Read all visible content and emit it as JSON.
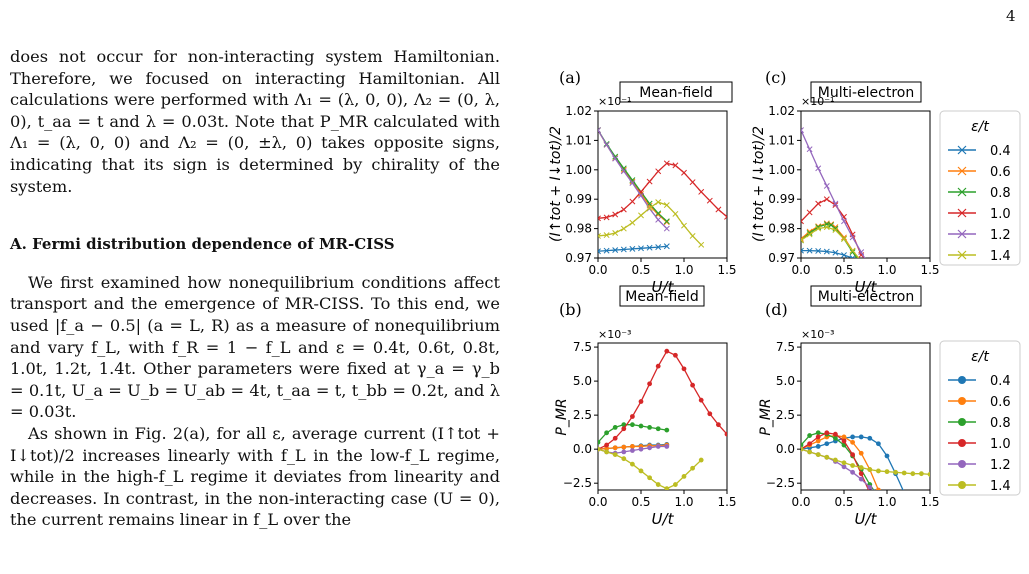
{
  "page": {
    "number": "4"
  },
  "text": {
    "para1": "does not occur for non-interacting system Hamiltonian. Therefore, we focused on interacting Hamiltonian. All calculations were performed with Λ₁ = (λ, 0, 0), Λ₂ = (0, λ, 0), t_aa = t and λ = 0.03t. Note that P_MR calculated with Λ₁ = (λ, 0, 0) and Λ₂ = (0, ±λ, 0) takes opposite signs, indicating that its sign is determined by chirality of the system.",
    "heading": "A.   Fermi distribution dependence of MR-CISS",
    "para2": "We first examined how nonequilibrium conditions affect transport and the emergence of MR-CISS. To this end, we used |f_a − 0.5| (a = L, R) as a measure of nonequilibrium and vary f_L, with f_R = 1 − f_L and ε = 0.4t, 0.6t, 0.8t, 1.0t, 1.2t, 1.4t. Other parameters were fixed at γ_a = γ_b = 0.1t, U_a = U_b = U_ab = 4t, t_aa = t, t_bb = 0.2t, and λ = 0.03t.",
    "para3": "As shown in Fig. 2(a), for all ε, average current (I↑tot + I↓tot)/2 increases linearly with f_L in the low-f_L regime, while in the high-f_L regime it deviates from linearity and decreases. In contrast, in the non-interacting case (U = 0), the current remains linear in f_L over the"
  },
  "figure": {
    "panels": [
      {
        "tag": "(a)",
        "title": "Mean-field"
      },
      {
        "tag": "(c)",
        "title": "Multi-electron"
      },
      {
        "tag": "(b)",
        "title": "Mean-field"
      },
      {
        "tag": "(d)",
        "title": "Multi-electron"
      }
    ],
    "ylabel_top": "(I↑tot + I↓tot)/2",
    "ylabel_bottom": "P_MR",
    "xlabel": "U/t",
    "exp_top": "×10⁻¹",
    "exp_bottom": "×10⁻³",
    "legend_title": "ε/t",
    "legend_items": [
      "0.4",
      "0.6",
      "0.8",
      "1.0",
      "1.2",
      "1.4"
    ],
    "colors": [
      "#1f77b4",
      "#ff7f0e",
      "#2ca02c",
      "#d62728",
      "#9467bd",
      "#bcbd22"
    ]
  },
  "chart_data": [
    {
      "type": "line",
      "panel": "(a)",
      "title": "Mean-field",
      "xlabel": "U/t",
      "ylabel": "(I↑tot + I↓tot)/2",
      "y_multiplier": "×10⁻¹",
      "xlim": [
        0,
        1.5
      ],
      "ylim": [
        0.97,
        1.02
      ],
      "xticks": [
        0.0,
        0.5,
        1.0,
        1.5
      ],
      "yticks": [
        0.97,
        0.98,
        0.99,
        1.0,
        1.01,
        1.02
      ],
      "marker": "x",
      "series": [
        {
          "name": "0.4",
          "x": [
            0,
            0.1,
            0.2,
            0.3,
            0.4,
            0.5,
            0.6,
            0.7,
            0.8
          ],
          "y": [
            0.9723,
            0.9725,
            0.9727,
            0.9729,
            0.9731,
            0.9733,
            0.9735,
            0.9737,
            0.974
          ]
        },
        {
          "name": "0.6",
          "x": [
            0,
            0.1,
            0.2,
            0.3,
            0.4,
            0.5,
            0.6,
            0.7,
            0.8
          ],
          "y": [
            1.0135,
            1.0085,
            1.004,
            1.0,
            0.996,
            0.9918,
            0.9878,
            0.9848,
            0.9822
          ]
        },
        {
          "name": "0.8",
          "x": [
            0,
            0.1,
            0.2,
            0.3,
            0.4,
            0.5,
            0.6,
            0.7,
            0.8
          ],
          "y": [
            1.0135,
            1.0088,
            1.0045,
            1.0005,
            0.9965,
            0.9925,
            0.9885,
            0.9852,
            0.9825
          ]
        },
        {
          "name": "1.0",
          "x": [
            0,
            0.1,
            0.2,
            0.3,
            0.4,
            0.5,
            0.6,
            0.7,
            0.8,
            0.9,
            1.0,
            1.1,
            1.2,
            1.3,
            1.4,
            1.5
          ],
          "y": [
            0.9835,
            0.9838,
            0.9848,
            0.9865,
            0.9892,
            0.9925,
            0.996,
            0.9995,
            1.0022,
            1.0015,
            0.999,
            0.9958,
            0.9925,
            0.9895,
            0.9865,
            0.984
          ]
        },
        {
          "name": "1.2",
          "x": [
            0,
            0.1,
            0.2,
            0.3,
            0.4,
            0.5,
            0.6,
            0.7,
            0.8
          ],
          "y": [
            1.0135,
            1.0085,
            1.0038,
            0.9995,
            0.9955,
            0.9912,
            0.9868,
            0.983,
            0.98
          ]
        },
        {
          "name": "1.4",
          "x": [
            0,
            0.1,
            0.2,
            0.3,
            0.4,
            0.5,
            0.6,
            0.7,
            0.8,
            0.9,
            1.0,
            1.1,
            1.2
          ],
          "y": [
            0.9775,
            0.9778,
            0.9785,
            0.98,
            0.982,
            0.9845,
            0.987,
            0.989,
            0.988,
            0.985,
            0.981,
            0.9775,
            0.9745
          ]
        }
      ]
    },
    {
      "type": "line",
      "panel": "(c)",
      "title": "Multi-electron",
      "xlabel": "U/t",
      "ylabel": "(I↑tot + I↓tot)/2",
      "y_multiplier": "×10⁻¹",
      "xlim": [
        0,
        1.5
      ],
      "ylim": [
        0.97,
        1.02
      ],
      "xticks": [
        0.0,
        0.5,
        1.0,
        1.5
      ],
      "yticks": [
        0.97,
        0.98,
        0.99,
        1.0,
        1.01,
        1.02
      ],
      "marker": "x",
      "series": [
        {
          "name": "0.4",
          "x": [
            0,
            0.1,
            0.2,
            0.3,
            0.4,
            0.5,
            0.6,
            0.7
          ],
          "y": [
            0.9725,
            0.9725,
            0.9724,
            0.9722,
            0.9718,
            0.971,
            0.97,
            0.969
          ]
        },
        {
          "name": "0.6",
          "x": [
            0,
            0.1,
            0.2,
            0.3,
            0.35,
            0.4,
            0.5,
            0.6,
            0.7
          ],
          "y": [
            0.9765,
            0.979,
            0.9808,
            0.9818,
            0.9815,
            0.9805,
            0.977,
            0.9725,
            0.9685
          ]
        },
        {
          "name": "0.8",
          "x": [
            0,
            0.1,
            0.2,
            0.3,
            0.35,
            0.4,
            0.5,
            0.6,
            0.7
          ],
          "y": [
            0.976,
            0.9785,
            0.9805,
            0.9815,
            0.9812,
            0.98,
            0.9765,
            0.972,
            0.968
          ]
        },
        {
          "name": "1.0",
          "x": [
            0,
            0.1,
            0.2,
            0.3,
            0.4,
            0.5,
            0.6,
            0.7
          ],
          "y": [
            0.9825,
            0.9855,
            0.9885,
            0.99,
            0.988,
            0.984,
            0.978,
            0.971
          ]
        },
        {
          "name": "1.2",
          "x": [
            0,
            0.1,
            0.2,
            0.3,
            0.4,
            0.5,
            0.6,
            0.7,
            0.8
          ],
          "y": [
            1.0135,
            1.007,
            1.0005,
            0.9945,
            0.9885,
            0.9825,
            0.977,
            0.972,
            0.967
          ]
        },
        {
          "name": "1.4",
          "x": [
            0,
            0.1,
            0.2,
            0.3,
            0.4,
            0.5,
            0.6,
            0.7
          ],
          "y": [
            0.976,
            0.978,
            0.98,
            0.9805,
            0.9795,
            0.9765,
            0.9725,
            0.969
          ]
        }
      ]
    },
    {
      "type": "line",
      "panel": "(b)",
      "title": "Mean-field",
      "xlabel": "U/t",
      "ylabel": "P_MR",
      "y_multiplier": "×10⁻³",
      "xlim": [
        0,
        1.5
      ],
      "ylim": [
        -3.0,
        7.8
      ],
      "xticks": [
        0.0,
        0.5,
        1.0,
        1.5
      ],
      "yticks": [
        -2.5,
        0.0,
        2.5,
        5.0,
        7.5
      ],
      "marker": "o",
      "series": [
        {
          "name": "0.4",
          "x": [
            0,
            0.1,
            0.2,
            0.3,
            0.4,
            0.5,
            0.6,
            0.7,
            0.8
          ],
          "y": [
            0.0,
            0.05,
            0.1,
            0.15,
            0.2,
            0.25,
            0.3,
            0.3,
            0.35
          ]
        },
        {
          "name": "0.6",
          "x": [
            0,
            0.1,
            0.2,
            0.3,
            0.4,
            0.5,
            0.6,
            0.7,
            0.8
          ],
          "y": [
            0.0,
            0.05,
            0.1,
            0.15,
            0.2,
            0.2,
            0.25,
            0.25,
            0.3
          ]
        },
        {
          "name": "0.8",
          "x": [
            0,
            0.1,
            0.2,
            0.3,
            0.4,
            0.5,
            0.6,
            0.7,
            0.8
          ],
          "y": [
            0.5,
            1.2,
            1.6,
            1.8,
            1.8,
            1.7,
            1.6,
            1.5,
            1.4
          ]
        },
        {
          "name": "1.0",
          "x": [
            0,
            0.1,
            0.2,
            0.3,
            0.4,
            0.5,
            0.6,
            0.7,
            0.8,
            0.9,
            1.0,
            1.1,
            1.2,
            1.3,
            1.4,
            1.5
          ],
          "y": [
            0.0,
            0.3,
            0.8,
            1.5,
            2.4,
            3.5,
            4.8,
            6.1,
            7.2,
            6.9,
            5.9,
            4.7,
            3.6,
            2.6,
            1.8,
            1.1
          ]
        },
        {
          "name": "1.2",
          "x": [
            0,
            0.1,
            0.2,
            0.3,
            0.4,
            0.5,
            0.6,
            0.7,
            0.8
          ],
          "y": [
            0.0,
            -0.2,
            -0.3,
            -0.2,
            -0.1,
            0.0,
            0.1,
            0.2,
            0.2
          ]
        },
        {
          "name": "1.4",
          "x": [
            0,
            0.1,
            0.2,
            0.3,
            0.4,
            0.5,
            0.6,
            0.7,
            0.8,
            0.9,
            1.0,
            1.1,
            1.2
          ],
          "y": [
            0.0,
            -0.2,
            -0.4,
            -0.7,
            -1.1,
            -1.6,
            -2.1,
            -2.6,
            -2.9,
            -2.6,
            -2.0,
            -1.4,
            -0.8
          ]
        }
      ]
    },
    {
      "type": "line",
      "panel": "(d)",
      "title": "Multi-electron",
      "xlabel": "U/t",
      "ylabel": "P_MR",
      "y_multiplier": "×10⁻³",
      "xlim": [
        0,
        1.5
      ],
      "ylim": [
        -3.0,
        7.8
      ],
      "xticks": [
        0.0,
        0.5,
        1.0,
        1.5
      ],
      "yticks": [
        -2.5,
        0.0,
        2.5,
        5.0,
        7.5
      ],
      "marker": "o",
      "series": [
        {
          "name": "0.4",
          "x": [
            0,
            0.1,
            0.2,
            0.3,
            0.4,
            0.5,
            0.6,
            0.7,
            0.8,
            0.9,
            1.0,
            1.1,
            1.2
          ],
          "y": [
            0.0,
            0.1,
            0.2,
            0.4,
            0.6,
            0.8,
            0.9,
            0.9,
            0.8,
            0.4,
            -0.5,
            -1.8,
            -3.2
          ]
        },
        {
          "name": "0.6",
          "x": [
            0,
            0.1,
            0.2,
            0.3,
            0.4,
            0.5,
            0.6,
            0.7,
            0.8,
            0.9
          ],
          "y": [
            0.0,
            0.3,
            0.6,
            0.9,
            1.0,
            0.9,
            0.5,
            -0.3,
            -1.5,
            -3.0
          ]
        },
        {
          "name": "0.8",
          "x": [
            0,
            0.1,
            0.2,
            0.3,
            0.4,
            0.5,
            0.6,
            0.7,
            0.8,
            0.9
          ],
          "y": [
            0.3,
            1.0,
            1.2,
            1.1,
            0.8,
            0.3,
            -0.5,
            -1.5,
            -2.6,
            -3.5
          ]
        },
        {
          "name": "1.0",
          "x": [
            0,
            0.1,
            0.2,
            0.3,
            0.4,
            0.5,
            0.6,
            0.7,
            0.8
          ],
          "y": [
            0.0,
            0.4,
            0.9,
            1.2,
            1.1,
            0.6,
            -0.4,
            -1.8,
            -3.2
          ]
        },
        {
          "name": "1.2",
          "x": [
            0,
            0.1,
            0.2,
            0.3,
            0.4,
            0.5,
            0.6,
            0.7,
            0.8,
            0.9
          ],
          "y": [
            0.0,
            -0.2,
            -0.4,
            -0.6,
            -0.9,
            -1.3,
            -1.7,
            -2.2,
            -2.8,
            -3.4
          ]
        },
        {
          "name": "1.4",
          "x": [
            0,
            0.1,
            0.2,
            0.3,
            0.4,
            0.5,
            0.6,
            0.7,
            0.8,
            0.9,
            1.0,
            1.1,
            1.2,
            1.3,
            1.4,
            1.5
          ],
          "y": [
            0.0,
            -0.2,
            -0.4,
            -0.6,
            -0.8,
            -1.0,
            -1.2,
            -1.35,
            -1.5,
            -1.6,
            -1.65,
            -1.7,
            -1.75,
            -1.8,
            -1.8,
            -1.85
          ]
        }
      ]
    }
  ]
}
